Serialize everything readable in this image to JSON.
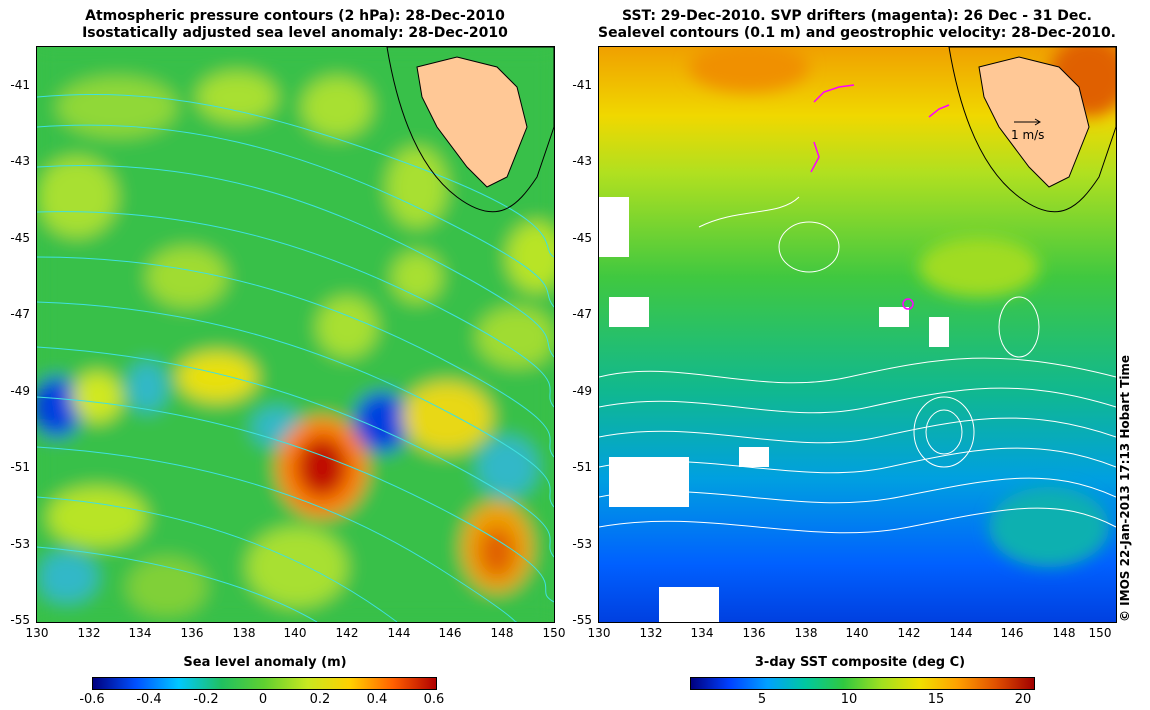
{
  "left_panel": {
    "title_line1": "Atmospheric pressure contours (2 hPa): 28-Dec-2010",
    "title_line2": "Isostatically adjusted sea level anomaly: 28-Dec-2010",
    "colorbar_label": "Sea level anomaly (m)",
    "colorbar_ticks": [
      "-0.6",
      "-0.4",
      "-0.2",
      "0",
      "0.2",
      "0.4",
      "0.6"
    ],
    "colorbar_colors": [
      "#00007f",
      "#0050ff",
      "#00c8ff",
      "#20c060",
      "#60d030",
      "#c8e820",
      "#ffd000",
      "#ff6000",
      "#b00000"
    ]
  },
  "right_panel": {
    "title_line1": "SST: 29-Dec-2010. SVP drifters (magenta): 26 Dec - 31 Dec.",
    "title_line2": "Sealevel contours (0.1 m) and geostrophic velocity: 28-Dec-2010.",
    "colorbar_label": "3-day SST composite (deg C)",
    "colorbar_ticks": [
      "5",
      "10",
      "15",
      "20"
    ],
    "colorbar_colors": [
      "#00007f",
      "#0040ff",
      "#00a0ff",
      "#00c8a0",
      "#30c840",
      "#a0e020",
      "#f0e000",
      "#ffa000",
      "#e05000",
      "#a00000"
    ],
    "velocity_label": "1 m/s"
  },
  "axes": {
    "lat_ticks": [
      "-41",
      "-43",
      "-45",
      "-47",
      "-49",
      "-51",
      "-53",
      "-55"
    ],
    "lon_ticks": [
      "130",
      "132",
      "134",
      "136",
      "138",
      "140",
      "142",
      "144",
      "146",
      "148",
      "150"
    ]
  },
  "credit": "© IMOS 22-Jan-2013 17:13 Hobart Time",
  "colors": {
    "land": "#ffc896",
    "contour_left": "#40e0e0",
    "contour_right": "#ffffff"
  }
}
